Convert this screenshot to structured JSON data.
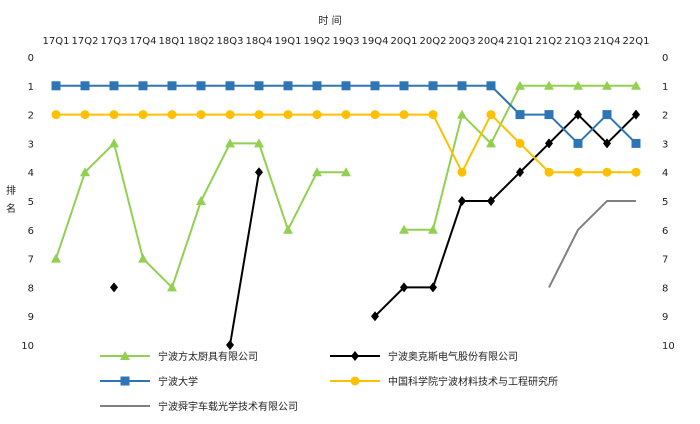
{
  "chart_data": {
    "type": "line",
    "title": "",
    "xlabel": "时 间",
    "ylabel": "排名",
    "categories": [
      "17Q1",
      "17Q2",
      "17Q3",
      "17Q4",
      "18Q1",
      "18Q2",
      "18Q3",
      "18Q4",
      "19Q1",
      "19Q2",
      "19Q3",
      "19Q4",
      "20Q1",
      "20Q2",
      "20Q3",
      "20Q4",
      "21Q1",
      "21Q2",
      "21Q3",
      "21Q4",
      "22Q1"
    ],
    "ylim": [
      0,
      10
    ],
    "y_inverted": true,
    "y_ticks": [
      0,
      1,
      2,
      3,
      4,
      5,
      6,
      7,
      8,
      9,
      10
    ],
    "grid": false,
    "legend_position": "bottom",
    "series": [
      {
        "name": "宁波方太厨具有限公司",
        "color": "#92D050",
        "marker": "triangle",
        "values": [
          7,
          4,
          3,
          7,
          8,
          5,
          3,
          3,
          6,
          4,
          4,
          null,
          6,
          6,
          2,
          3,
          1,
          1,
          1,
          1,
          1
        ]
      },
      {
        "name": "宁波奥克斯电气股份有限公司",
        "color": "#000000",
        "marker": "diamond",
        "values": [
          null,
          null,
          8,
          null,
          null,
          null,
          10,
          4,
          null,
          null,
          null,
          9,
          8,
          8,
          5,
          5,
          4,
          3,
          2,
          3,
          2
        ]
      },
      {
        "name": "宁波大学",
        "color": "#2E75B6",
        "marker": "square",
        "values": [
          1,
          1,
          1,
          1,
          1,
          1,
          1,
          1,
          1,
          1,
          1,
          1,
          1,
          1,
          1,
          1,
          2,
          2,
          3,
          2,
          3
        ]
      },
      {
        "name": "中国科学院宁波材料技术与工程研究所",
        "color": "#FFC000",
        "marker": "circle",
        "values": [
          2,
          2,
          2,
          2,
          2,
          2,
          2,
          2,
          2,
          2,
          2,
          2,
          2,
          2,
          4,
          2,
          3,
          4,
          4,
          4,
          4
        ]
      },
      {
        "name": "宁波舜宇车载光学技术有限公司",
        "color": "#808080",
        "marker": "none",
        "values": [
          null,
          null,
          null,
          null,
          null,
          null,
          null,
          null,
          null,
          null,
          null,
          null,
          null,
          null,
          null,
          null,
          null,
          8,
          6,
          5,
          5
        ]
      }
    ]
  }
}
